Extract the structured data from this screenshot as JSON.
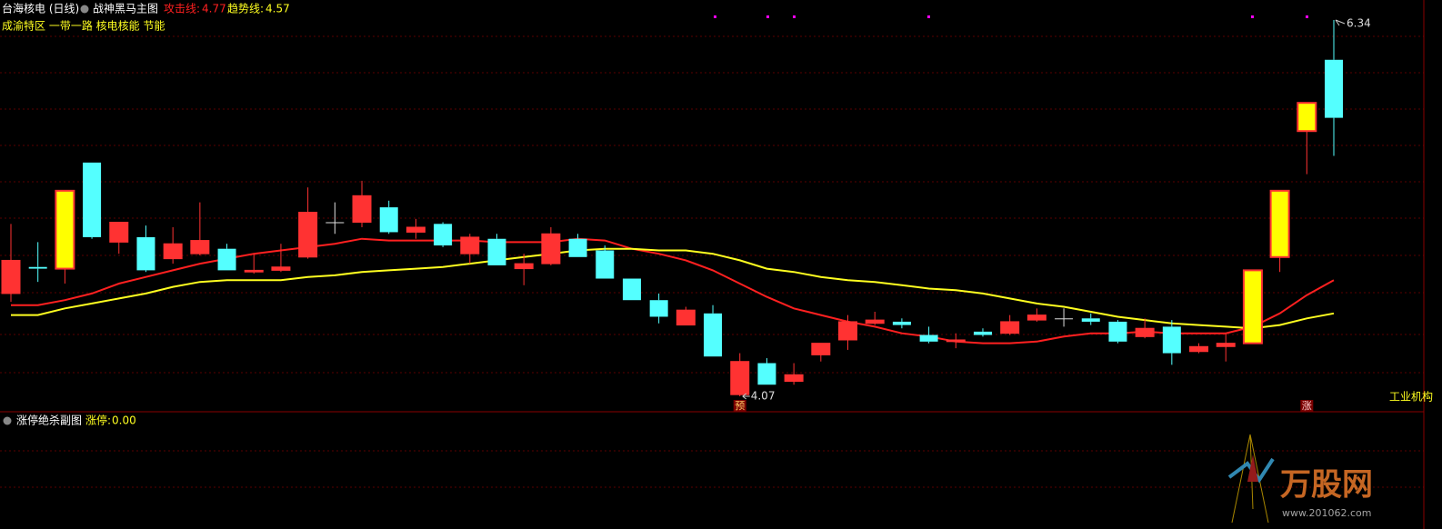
{
  "header": {
    "stock": "台海核电 (日线)",
    "indicator": "战神黑马主图",
    "concepts": "成渝特区 一带一路 核电核能 节能"
  },
  "chart_data": {
    "type": "candlestick",
    "categories": [
      null,
      null,
      null,
      null,
      null,
      null,
      null,
      null,
      null,
      null,
      null,
      null,
      null,
      null,
      null,
      null,
      null,
      null,
      null,
      null,
      null,
      null,
      null,
      null,
      null,
      null,
      null,
      null,
      null,
      null,
      null,
      null,
      null,
      null,
      null,
      null,
      null,
      null,
      null,
      null,
      null,
      null,
      null,
      null,
      null,
      null,
      null,
      null,
      null,
      null
    ],
    "open": [
      4.69,
      4.85,
      4.84,
      5.48,
      5.0,
      5.03,
      4.9,
      4.93,
      4.96,
      4.82,
      4.83,
      4.91,
      5.12,
      5.12,
      5.21,
      5.06,
      5.11,
      4.93,
      5.02,
      4.84,
      4.87,
      5.02,
      4.95,
      4.78,
      4.65,
      4.5,
      4.57,
      4.08,
      4.27,
      4.16,
      4.32,
      4.41,
      4.51,
      4.52,
      4.44,
      4.4,
      4.46,
      4.45,
      4.53,
      4.54,
      4.54,
      4.52,
      4.43,
      4.49,
      4.34,
      4.37,
      4.39,
      4.91,
      5.67,
      6.1
    ],
    "high": [
      5.11,
      5.0,
      5.31,
      5.48,
      5.12,
      5.1,
      5.09,
      5.24,
      4.99,
      4.93,
      4.99,
      5.33,
      5.24,
      5.37,
      5.25,
      5.14,
      5.12,
      5.05,
      5.05,
      4.93,
      5.09,
      5.05,
      4.98,
      4.78,
      4.69,
      4.61,
      4.62,
      4.33,
      4.3,
      4.27,
      4.39,
      4.56,
      4.58,
      4.54,
      4.49,
      4.45,
      4.48,
      4.56,
      4.6,
      4.6,
      4.57,
      4.53,
      4.54,
      4.53,
      4.39,
      4.45,
      4.83,
      5.31,
      5.84,
      6.34
    ],
    "low": [
      4.64,
      4.76,
      4.75,
      5.02,
      4.93,
      4.82,
      4.87,
      4.92,
      4.83,
      4.81,
      4.82,
      4.9,
      5.05,
      5.09,
      5.05,
      5.02,
      4.97,
      4.87,
      4.86,
      4.74,
      4.86,
      4.91,
      4.78,
      4.65,
      4.51,
      4.5,
      4.31,
      4.07,
      4.14,
      4.14,
      4.28,
      4.35,
      4.5,
      4.48,
      4.39,
      4.36,
      4.43,
      4.44,
      4.52,
      4.49,
      4.5,
      4.39,
      4.42,
      4.26,
      4.33,
      4.28,
      4.39,
      4.82,
      5.41,
      5.52
    ],
    "close": [
      4.89,
      4.84,
      5.31,
      5.03,
      5.12,
      4.83,
      4.99,
      5.01,
      4.83,
      4.83,
      4.85,
      5.18,
      5.12,
      5.28,
      5.06,
      5.09,
      4.98,
      5.03,
      4.86,
      4.87,
      5.05,
      4.91,
      4.78,
      4.65,
      4.55,
      4.59,
      4.31,
      4.28,
      4.14,
      4.2,
      4.39,
      4.52,
      4.53,
      4.5,
      4.4,
      4.41,
      4.44,
      4.52,
      4.56,
      4.54,
      4.52,
      4.4,
      4.48,
      4.33,
      4.37,
      4.39,
      4.83,
      5.31,
      5.84,
      5.75
    ],
    "up_color": "#ff3232",
    "down_color": "#54ffff",
    "limit_color": "#ffff00",
    "doji_color": "#e0e0e0",
    "series": [
      {
        "name": "攻击线:",
        "color": "#ff2020",
        "values": [
          4.62,
          4.62,
          4.65,
          4.69,
          4.75,
          4.79,
          4.83,
          4.87,
          4.9,
          4.93,
          4.95,
          4.97,
          4.99,
          5.02,
          5.01,
          5.01,
          5.01,
          5.01,
          5.0,
          5.0,
          5.0,
          5.02,
          5.01,
          4.96,
          4.93,
          4.89,
          4.83,
          4.75,
          4.67,
          4.6,
          4.56,
          4.52,
          4.49,
          4.45,
          4.43,
          4.4,
          4.39,
          4.39,
          4.4,
          4.43,
          4.45,
          4.45,
          4.46,
          4.45,
          4.45,
          4.45,
          4.49,
          4.57,
          4.68,
          4.77
        ]
      },
      {
        "name": "趋势线:",
        "color": "#ffff20",
        "values": [
          4.56,
          4.56,
          4.6,
          4.63,
          4.66,
          4.69,
          4.73,
          4.76,
          4.77,
          4.77,
          4.77,
          4.79,
          4.8,
          4.82,
          4.83,
          4.84,
          4.85,
          4.87,
          4.89,
          4.91,
          4.93,
          4.95,
          4.96,
          4.96,
          4.95,
          4.95,
          4.93,
          4.89,
          4.84,
          4.82,
          4.79,
          4.77,
          4.76,
          4.74,
          4.72,
          4.71,
          4.69,
          4.66,
          4.63,
          4.61,
          4.58,
          4.55,
          4.53,
          4.51,
          4.5,
          4.49,
          4.48,
          4.5,
          4.54,
          4.57
        ]
      }
    ],
    "markers": {
      "pre": "预",
      "limit": "涨",
      "sector": "工业机构"
    }
  },
  "subchart": {
    "title": "涨停绝杀副图",
    "indicator": "涨停:",
    "value_label": "0.00"
  },
  "watermark": {
    "brand": "万股网",
    "url": "www.201062.com"
  }
}
